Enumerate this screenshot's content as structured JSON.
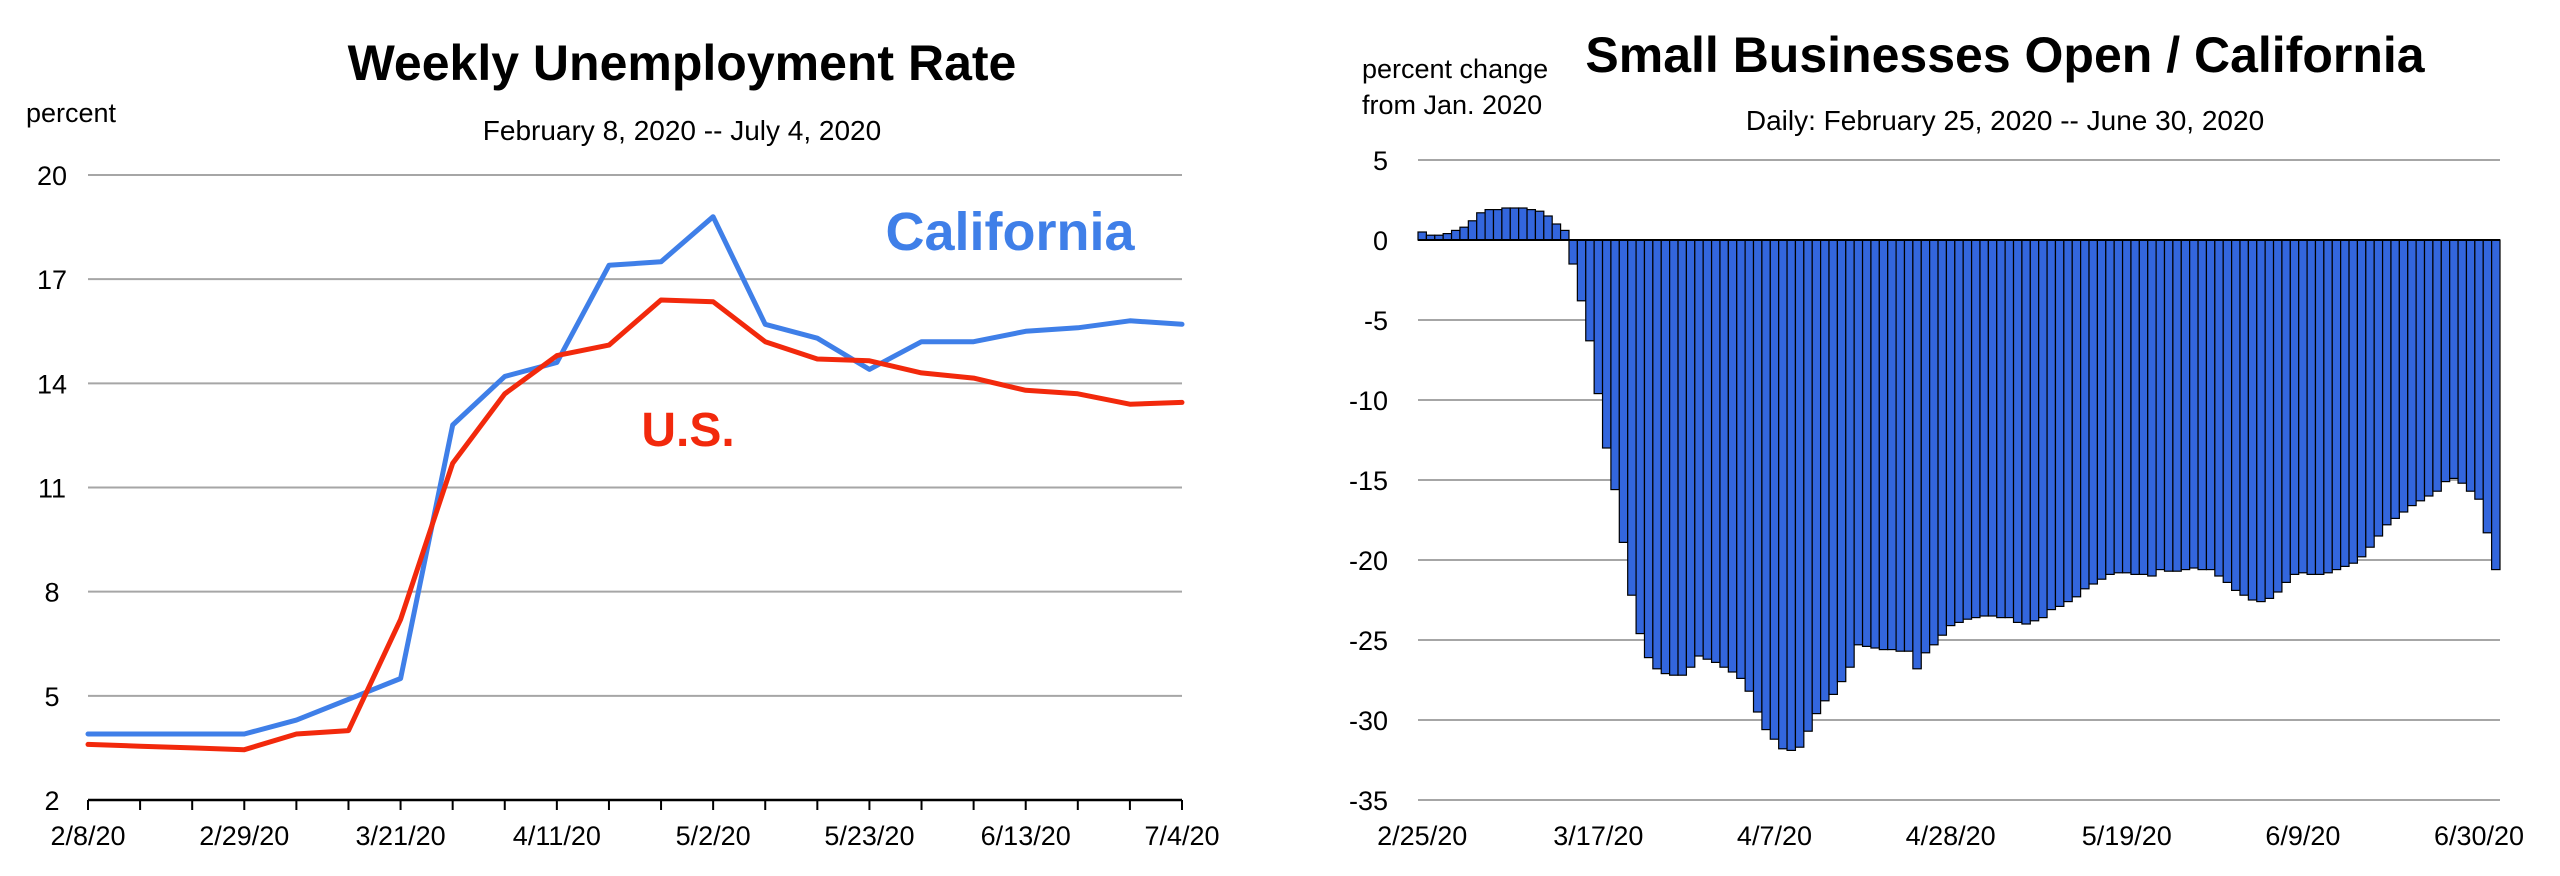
{
  "colors": {
    "california": "#3f7fe8",
    "us": "#f2290c",
    "bar_fill": "#3366dd",
    "bar_stroke": "#000000",
    "grid": "#a6a6a6"
  },
  "chart_data": [
    {
      "type": "line",
      "title": "Weekly Unemployment Rate",
      "subtitle": "February 8, 2020 -- July 4, 2020",
      "ylabel": "percent",
      "xlabel": "",
      "ylim": [
        2,
        20
      ],
      "yticks": [
        2,
        5,
        8,
        11,
        14,
        17,
        20
      ],
      "grid": true,
      "x": [
        "2/8/20",
        "2/15/20",
        "2/22/20",
        "2/29/20",
        "3/7/20",
        "3/14/20",
        "3/21/20",
        "3/28/20",
        "4/4/20",
        "4/11/20",
        "4/18/20",
        "4/25/20",
        "5/2/20",
        "5/9/20",
        "5/16/20",
        "5/23/20",
        "5/30/20",
        "6/6/20",
        "6/13/20",
        "6/20/20",
        "6/27/20",
        "7/4/20"
      ],
      "xtick_labels": [
        "2/8/20",
        "2/29/20",
        "3/21/20",
        "4/11/20",
        "5/2/20",
        "5/23/20",
        "6/13/20",
        "7/4/20"
      ],
      "series": [
        {
          "name": "California",
          "values": [
            3.9,
            3.9,
            3.9,
            3.9,
            4.3,
            4.9,
            5.5,
            12.8,
            14.2,
            14.6,
            17.4,
            17.5,
            18.8,
            15.7,
            15.3,
            14.4,
            15.2,
            15.2,
            15.5,
            15.6,
            15.8,
            15.7
          ]
        },
        {
          "name": "U.S.",
          "values": [
            3.6,
            3.55,
            3.5,
            3.45,
            3.9,
            4.0,
            7.2,
            11.7,
            13.7,
            14.8,
            15.1,
            16.4,
            16.35,
            15.2,
            14.7,
            14.65,
            14.3,
            14.15,
            13.8,
            13.7,
            13.4,
            13.45
          ]
        }
      ]
    },
    {
      "type": "bar",
      "title": "Small Businesses Open / California",
      "subtitle": "Daily: February 25, 2020 -- June 30, 2020",
      "ylabel_lines": [
        "percent change",
        "from Jan. 2020"
      ],
      "xlabel": "",
      "ylim": [
        -35,
        5
      ],
      "yticks": [
        5,
        0,
        -5,
        -10,
        -15,
        -20,
        -25,
        -30,
        -35
      ],
      "grid": true,
      "start_date": "2/25/20",
      "xtick_labels": [
        "2/25/20",
        "3/17/20",
        "4/7/20",
        "4/28/20",
        "5/19/20",
        "6/9/20",
        "6/30/20"
      ],
      "values": [
        0.5,
        0.3,
        0.3,
        0.4,
        0.6,
        0.8,
        1.2,
        1.7,
        1.9,
        1.9,
        2.0,
        2.0,
        2.0,
        1.9,
        1.8,
        1.5,
        1.0,
        0.6,
        -1.5,
        -3.8,
        -6.3,
        -9.6,
        -13.0,
        -15.6,
        -18.9,
        -22.2,
        -24.6,
        -26.1,
        -26.8,
        -27.1,
        -27.2,
        -27.2,
        -26.7,
        -26.0,
        -26.2,
        -26.4,
        -26.7,
        -27.0,
        -27.4,
        -28.2,
        -29.5,
        -30.6,
        -31.2,
        -31.8,
        -31.9,
        -31.7,
        -30.7,
        -29.6,
        -28.8,
        -28.4,
        -27.6,
        -26.7,
        -25.3,
        -25.4,
        -25.5,
        -25.6,
        -25.6,
        -25.7,
        -25.7,
        -26.8,
        -25.8,
        -25.3,
        -24.7,
        -24.1,
        -23.9,
        -23.7,
        -23.6,
        -23.5,
        -23.5,
        -23.6,
        -23.6,
        -23.9,
        -24.0,
        -23.8,
        -23.6,
        -23.1,
        -22.9,
        -22.6,
        -22.3,
        -21.8,
        -21.5,
        -21.2,
        -20.9,
        -20.8,
        -20.8,
        -20.9,
        -20.9,
        -21.0,
        -20.6,
        -20.7,
        -20.7,
        -20.6,
        -20.5,
        -20.6,
        -20.6,
        -21.0,
        -21.4,
        -21.9,
        -22.2,
        -22.5,
        -22.6,
        -22.4,
        -22.0,
        -21.4,
        -20.9,
        -20.8,
        -20.9,
        -20.9,
        -20.8,
        -20.6,
        -20.4,
        -20.2,
        -19.8,
        -19.2,
        -18.5,
        -17.8,
        -17.4,
        -17.0,
        -16.6,
        -16.3,
        -16.0,
        -15.7,
        -15.1,
        -14.9,
        -15.2,
        -15.7,
        -16.2,
        -18.3,
        -20.6
      ]
    }
  ],
  "annotations": {
    "california_label": "California",
    "us_label": "U.S."
  }
}
